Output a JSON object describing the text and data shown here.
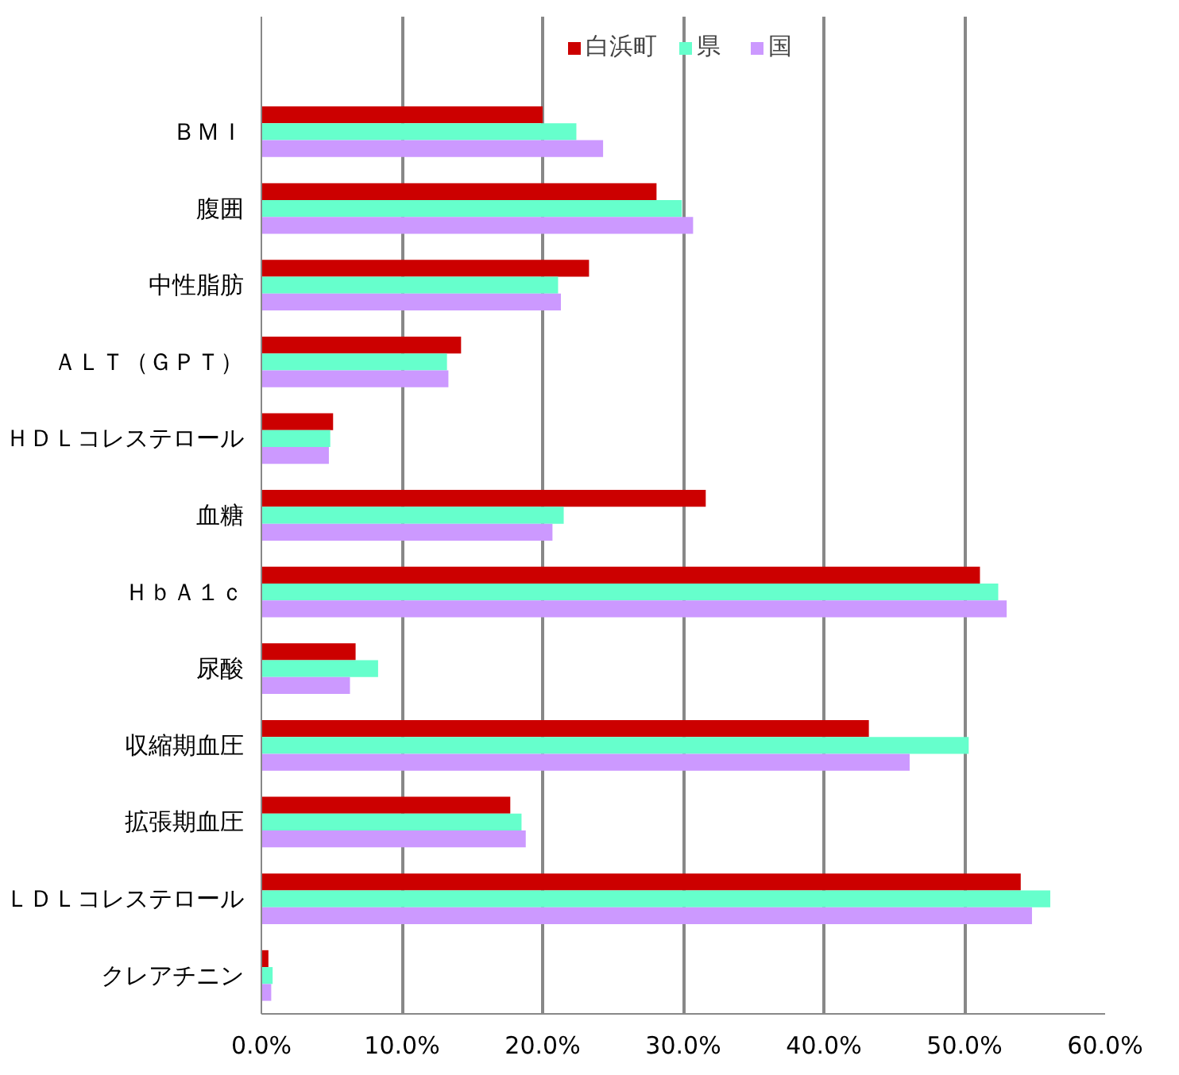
{
  "chart_data": {
    "type": "bar",
    "orientation": "horizontal",
    "categories": [
      "ＢＭＩ",
      "腹囲",
      "中性脂肪",
      "ＡＬＴ（ＧＰＴ）",
      "ＨＤＬコレステロール",
      "血糖",
      "ＨｂＡ１ｃ",
      "尿酸",
      "収縮期血圧",
      "拡張期血圧",
      "ＬＤＬコレステロール",
      "クレアチニン"
    ],
    "series": [
      {
        "name": "白浜町",
        "color": "#cc0000",
        "values": [
          20.0,
          28.1,
          23.3,
          14.2,
          5.1,
          31.6,
          51.1,
          6.7,
          43.2,
          17.7,
          54.0,
          0.5
        ]
      },
      {
        "name": "県",
        "color": "#66ffcc",
        "values": [
          22.4,
          29.9,
          21.1,
          13.2,
          4.9,
          21.5,
          52.4,
          8.3,
          50.3,
          18.5,
          56.1,
          0.8
        ]
      },
      {
        "name": "国",
        "color": "#cc99ff",
        "values": [
          24.3,
          30.7,
          21.3,
          13.3,
          4.8,
          20.7,
          53.0,
          6.3,
          46.1,
          18.8,
          54.8,
          0.7
        ]
      }
    ],
    "xlim": [
      0,
      60
    ],
    "xticks": [
      {
        "value": 0,
        "label": "0.0%"
      },
      {
        "value": 10,
        "label": "10.0%"
      },
      {
        "value": 20,
        "label": "20.0%"
      },
      {
        "value": 30,
        "label": "30.0%"
      },
      {
        "value": 40,
        "label": "40.0%"
      },
      {
        "value": 50,
        "label": "50.0%"
      },
      {
        "value": 60,
        "label": "60.0%"
      }
    ],
    "grid": "x",
    "legend": "top"
  }
}
